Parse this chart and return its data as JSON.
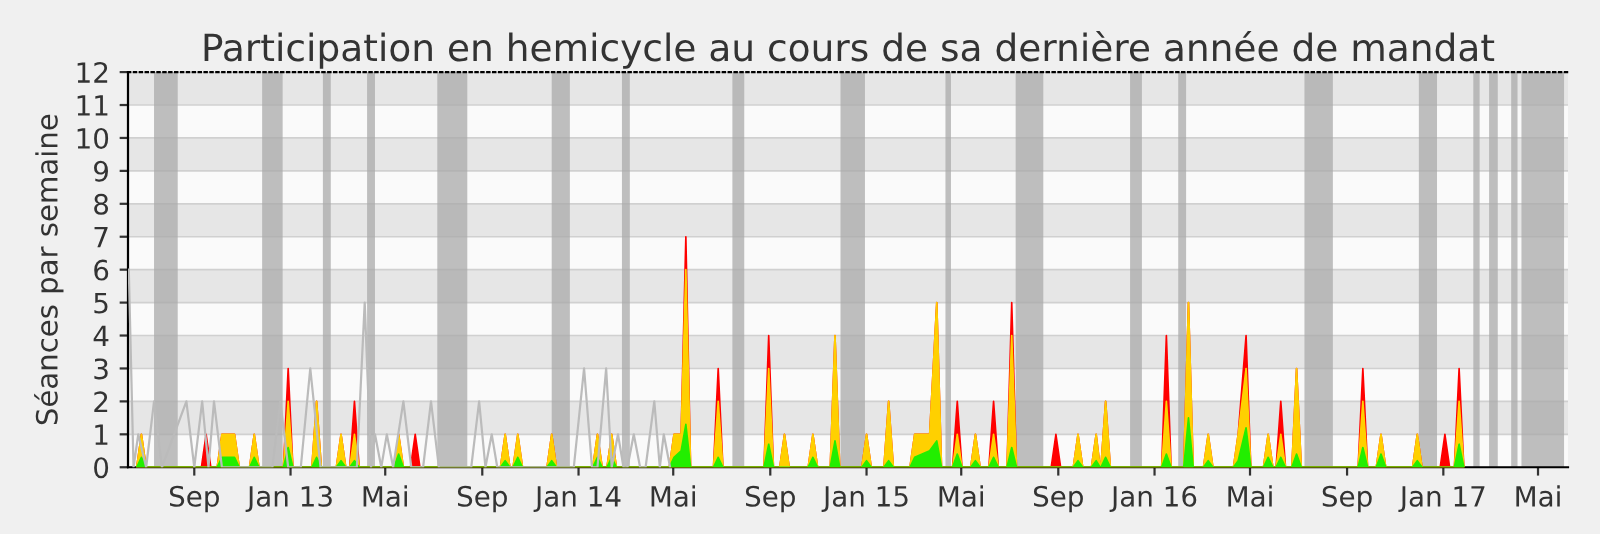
{
  "chart_data": {
    "type": "area",
    "title": "Participation en hemicycle au cours de sa dernière année de mandat",
    "ylabel": "Séances par semaine",
    "xlim": [
      "2012-06-09",
      "2017-06-08"
    ],
    "ylim": [
      0,
      12
    ],
    "yticks": [
      0,
      1,
      2,
      3,
      4,
      5,
      6,
      7,
      8,
      9,
      10,
      11,
      12
    ],
    "xticks": [
      {
        "value": "2012-09-01",
        "label": "Sep"
      },
      {
        "value": "2013-01-01",
        "label": "Jan 13"
      },
      {
        "value": "2013-05-01",
        "label": "Mai"
      },
      {
        "value": "2013-09-01",
        "label": "Sep"
      },
      {
        "value": "2014-01-01",
        "label": "Jan 14"
      },
      {
        "value": "2014-05-01",
        "label": "Mai"
      },
      {
        "value": "2014-09-01",
        "label": "Sep"
      },
      {
        "value": "2015-01-01",
        "label": "Jan 15"
      },
      {
        "value": "2015-05-01",
        "label": "Mai"
      },
      {
        "value": "2015-09-01",
        "label": "Sep"
      },
      {
        "value": "2016-01-01",
        "label": "Jan 16"
      },
      {
        "value": "2016-05-01",
        "label": "Mai"
      },
      {
        "value": "2016-09-01",
        "label": "Sep"
      },
      {
        "value": "2017-01-01",
        "label": "Jan 17"
      },
      {
        "value": "2017-05-01",
        "label": "Mai"
      }
    ],
    "grid": "y",
    "x": [
      "2012-06-20",
      "2012-06-26",
      "2012-07-02",
      "2012-09-10",
      "2012-09-16",
      "2012-09-22",
      "2012-09-30",
      "2012-10-06",
      "2012-10-22",
      "2012-10-28",
      "2012-11-10",
      "2012-11-16",
      "2012-11-22",
      "2012-12-23",
      "2012-12-29",
      "2013-01-04",
      "2013-01-28",
      "2013-02-03",
      "2013-02-09",
      "2013-02-28",
      "2013-03-06",
      "2013-03-12",
      "2013-03-17",
      "2013-03-23",
      "2013-03-29",
      "2013-05-12",
      "2013-05-18",
      "2013-05-24",
      "2013-06-02",
      "2013-06-08",
      "2013-06-14",
      "2013-09-24",
      "2013-09-30",
      "2013-10-06",
      "2013-10-10",
      "2013-10-16",
      "2013-10-22",
      "2013-11-22",
      "2013-11-28",
      "2013-12-04",
      "2014-01-19",
      "2014-01-25",
      "2014-01-31",
      "2014-02-06",
      "2014-02-12",
      "2014-02-18",
      "2014-04-26",
      "2014-05-02",
      "2014-05-11",
      "2014-05-17",
      "2014-05-23",
      "2014-06-21",
      "2014-06-27",
      "2014-07-03",
      "2014-08-24",
      "2014-08-30",
      "2014-09-05",
      "2014-09-13",
      "2014-09-19",
      "2014-09-25",
      "2014-10-19",
      "2014-10-25",
      "2014-10-31",
      "2014-11-16",
      "2014-11-22",
      "2014-11-28",
      "2014-12-26",
      "2015-01-01",
      "2015-01-07",
      "2015-01-23",
      "2015-01-29",
      "2015-02-04",
      "2015-02-25",
      "2015-03-03",
      "2015-03-22",
      "2015-03-31",
      "2015-04-06",
      "2015-04-20",
      "2015-04-26",
      "2015-05-02",
      "2015-05-13",
      "2015-05-19",
      "2015-05-25",
      "2015-06-05",
      "2015-06-11",
      "2015-06-17",
      "2015-06-28",
      "2015-07-04",
      "2015-07-10",
      "2015-08-23",
      "2015-08-29",
      "2015-09-04",
      "2015-09-20",
      "2015-09-26",
      "2015-10-02",
      "2015-10-13",
      "2015-10-19",
      "2015-10-24",
      "2015-10-25",
      "2015-10-31",
      "2015-11-06",
      "2016-01-10",
      "2016-01-16",
      "2016-01-22",
      "2016-02-07",
      "2016-02-13",
      "2016-02-19",
      "2016-03-03",
      "2016-03-09",
      "2016-03-15",
      "2016-04-10",
      "2016-04-16",
      "2016-04-26",
      "2016-05-02",
      "2016-05-18",
      "2016-05-24",
      "2016-05-30",
      "2016-06-03",
      "2016-06-09",
      "2016-06-15",
      "2016-06-23",
      "2016-06-29",
      "2016-07-05",
      "2016-09-15",
      "2016-09-21",
      "2016-09-27",
      "2016-10-08",
      "2016-10-14",
      "2016-10-20",
      "2016-11-23",
      "2016-11-29",
      "2016-12-05",
      "2016-12-28",
      "2017-01-03",
      "2017-01-09",
      "2017-01-15",
      "2017-01-21",
      "2017-01-27"
    ],
    "series": [
      {
        "color": "#ff0000",
        "values": [
          0,
          1,
          0,
          0,
          1,
          0,
          0,
          1,
          1,
          0,
          0,
          1,
          0,
          0,
          3,
          0,
          0,
          2,
          0,
          0,
          1,
          0,
          0,
          2,
          0,
          0,
          1,
          0,
          0,
          1,
          0,
          0,
          1,
          0,
          0,
          1,
          0,
          0,
          1,
          0,
          0,
          1,
          0,
          0,
          1,
          0,
          0,
          1,
          1,
          7,
          0,
          0,
          3,
          0,
          0,
          4,
          0,
          0,
          1,
          0,
          0,
          1,
          0,
          0,
          4,
          0,
          0,
          1,
          0,
          0,
          2,
          0,
          0,
          1,
          1,
          5,
          0,
          0,
          2,
          0,
          0,
          1,
          0,
          0,
          2,
          0,
          0,
          5,
          0,
          0,
          1,
          0,
          0,
          1,
          0,
          0,
          1,
          0,
          0,
          2,
          0,
          0,
          4,
          0,
          0,
          5,
          0,
          0,
          1,
          0,
          0,
          1,
          4,
          0,
          0,
          1,
          0,
          0,
          2,
          0,
          0,
          3,
          0,
          0,
          3,
          0,
          0,
          1,
          0,
          0,
          1,
          0,
          0,
          1,
          0,
          0,
          3,
          0
        ]
      },
      {
        "color": "#ffd000",
        "values": [
          0,
          1,
          0,
          0,
          0,
          0,
          0,
          1,
          1,
          0,
          0,
          1,
          0,
          0,
          2,
          0,
          0,
          2,
          0,
          0,
          1,
          0,
          0,
          1,
          0,
          0,
          1,
          0,
          0,
          0,
          0,
          0,
          1,
          0,
          0,
          1,
          0,
          0,
          1,
          0,
          0,
          1,
          0,
          0,
          1,
          0,
          0,
          1,
          1,
          6,
          0,
          0,
          2,
          0,
          0,
          3,
          0,
          0,
          1,
          0,
          0,
          1,
          0,
          0,
          4,
          0,
          0,
          1,
          0,
          0,
          2,
          0,
          0,
          1,
          1,
          5,
          0,
          0,
          1,
          0,
          0,
          1,
          0,
          0,
          1,
          0,
          0,
          4,
          0,
          0,
          0,
          0,
          0,
          1,
          0,
          0,
          1,
          0,
          0,
          2,
          0,
          0,
          2,
          0,
          0,
          5,
          0,
          0,
          1,
          0,
          0,
          1,
          3,
          0,
          0,
          1,
          0,
          0,
          1,
          0,
          0,
          3,
          0,
          0,
          2,
          0,
          0,
          1,
          0,
          0,
          1,
          0,
          0,
          0,
          0,
          0,
          2,
          0
        ]
      },
      {
        "color": "#22ee00",
        "values": [
          0,
          0.3,
          0,
          0,
          0,
          0,
          0,
          0.3,
          0.3,
          0,
          0,
          0.3,
          0,
          0,
          0.6,
          0,
          0,
          0.3,
          0,
          0,
          0.2,
          0,
          0,
          0.2,
          0,
          0,
          0.4,
          0,
          0,
          0,
          0,
          0,
          0.2,
          0,
          0,
          0.3,
          0,
          0,
          0.2,
          0,
          0,
          0.3,
          0,
          0,
          0.3,
          0,
          0,
          0.3,
          0.5,
          1.3,
          0,
          0,
          0.3,
          0,
          0,
          0.7,
          0,
          0,
          0,
          0,
          0,
          0.3,
          0,
          0,
          0.8,
          0,
          0,
          0.2,
          0,
          0,
          0.2,
          0,
          0,
          0.3,
          0.5,
          0.8,
          0,
          0,
          0.4,
          0,
          0,
          0.2,
          0,
          0,
          0.3,
          0,
          0,
          0.6,
          0,
          0,
          0,
          0,
          0,
          0.2,
          0,
          0,
          0.2,
          0,
          0,
          0.3,
          0,
          0,
          0.4,
          0,
          0,
          1.5,
          0,
          0,
          0.2,
          0,
          0,
          0.2,
          1.2,
          0,
          0,
          0.3,
          0,
          0,
          0.3,
          0,
          0,
          0.4,
          0,
          0,
          0.6,
          0,
          0,
          0.4,
          0,
          0,
          0.2,
          0,
          0,
          0,
          0,
          0,
          0.7,
          0
        ]
      },
      {
        "type": "line",
        "color": "#bbbbbb",
        "x": [
          "2012-06-10",
          "2012-06-16",
          "2012-06-22",
          "2012-07-02",
          "2012-07-12",
          "2012-07-22",
          "2012-08-22",
          "2012-09-01",
          "2012-09-11",
          "2012-09-19",
          "2012-09-26",
          "2012-10-06",
          "2012-12-09",
          "2012-12-19",
          "2012-12-29",
          "2013-01-14",
          "2013-01-26",
          "2013-02-08",
          "2013-03-26",
          "2013-04-05",
          "2013-04-13",
          "2013-04-18",
          "2013-04-26",
          "2013-05-03",
          "2013-05-11",
          "2013-05-24",
          "2013-06-03",
          "2013-06-18",
          "2013-06-28",
          "2013-07-08",
          "2013-08-18",
          "2013-08-28",
          "2013-09-05",
          "2013-09-13",
          "2013-09-20",
          "2013-12-26",
          "2014-01-08",
          "2014-01-18",
          "2014-01-25",
          "2014-02-05",
          "2014-02-12",
          "2014-02-20",
          "2014-02-27",
          "2014-03-04",
          "2014-03-12",
          "2014-03-20",
          "2014-03-27",
          "2014-04-07",
          "2014-04-14",
          "2014-04-19",
          "2014-04-27"
        ],
        "values": [
          6,
          0,
          1,
          0,
          2,
          0,
          2,
          0,
          2,
          0,
          2,
          0,
          0,
          2,
          0,
          0,
          3,
          0,
          0,
          5,
          0,
          1,
          0,
          1,
          0,
          2,
          0,
          0,
          2,
          0,
          0,
          2,
          0,
          1,
          0,
          0,
          3,
          0,
          0,
          3,
          0,
          1,
          0,
          0,
          1,
          0,
          0,
          2,
          0,
          1,
          0
        ]
      }
    ],
    "bands": [
      {
        "axis": "x",
        "from": "2012-07-12",
        "to": "2012-08-11",
        "color": "#aaaaaa"
      },
      {
        "axis": "x",
        "from": "2012-11-26",
        "to": "2012-12-22",
        "color": "#aaaaaa"
      },
      {
        "axis": "x",
        "from": "2013-02-11",
        "to": "2013-02-21",
        "color": "#aaaaaa"
      },
      {
        "axis": "x",
        "from": "2013-04-08",
        "to": "2013-04-18",
        "color": "#aaaaaa"
      },
      {
        "axis": "x",
        "from": "2013-07-06",
        "to": "2013-08-13",
        "color": "#aaaaaa"
      },
      {
        "axis": "x",
        "from": "2013-11-28",
        "to": "2013-12-21",
        "color": "#aaaaaa"
      },
      {
        "axis": "x",
        "from": "2014-02-25",
        "to": "2014-03-07",
        "color": "#aaaaaa"
      },
      {
        "axis": "x",
        "from": "2014-07-15",
        "to": "2014-07-30",
        "color": "#aaaaaa"
      },
      {
        "axis": "x",
        "from": "2014-11-29",
        "to": "2014-12-30",
        "color": "#aaaaaa"
      },
      {
        "axis": "x",
        "from": "2015-04-11",
        "to": "2015-04-18",
        "color": "#aaaaaa"
      },
      {
        "axis": "x",
        "from": "2015-07-09",
        "to": "2015-08-13",
        "color": "#aaaaaa"
      },
      {
        "axis": "x",
        "from": "2015-12-01",
        "to": "2015-12-16",
        "color": "#aaaaaa"
      },
      {
        "axis": "x",
        "from": "2016-01-31",
        "to": "2016-02-10",
        "color": "#aaaaaa"
      },
      {
        "axis": "x",
        "from": "2016-07-09",
        "to": "2016-08-14",
        "color": "#aaaaaa"
      },
      {
        "axis": "x",
        "from": "2016-12-01",
        "to": "2016-12-24",
        "color": "#aaaaaa"
      },
      {
        "axis": "x",
        "from": "2017-02-08",
        "to": "2017-02-16",
        "color": "#aaaaaa"
      },
      {
        "axis": "x",
        "from": "2017-02-28",
        "to": "2017-03-11",
        "color": "#aaaaaa"
      },
      {
        "axis": "x",
        "from": "2017-03-28",
        "to": "2017-04-05",
        "color": "#aaaaaa"
      },
      {
        "axis": "x",
        "from": "2017-04-10",
        "to": "2017-06-03",
        "color": "#aaaaaa"
      }
    ]
  }
}
